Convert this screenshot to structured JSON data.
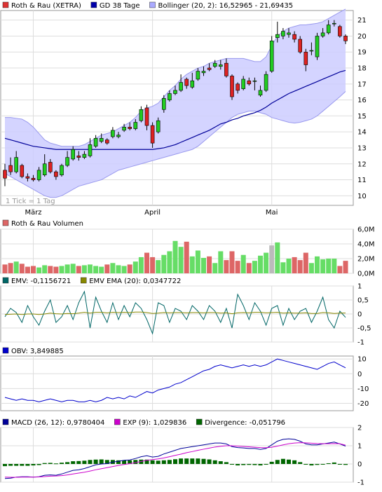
{
  "chart_data": [
    {
      "type": "candlestick",
      "legend": [
        {
          "label": "Roth & Rau (XETRA)",
          "color": "#dd3333"
        },
        {
          "label": "GD 38 Tage",
          "color": "#0000aa"
        },
        {
          "label": "Bollinger (20, 2): 16,52965 - 21,69435",
          "color": "#aaaaff"
        }
      ],
      "note": "1 Tick = 1 Tag",
      "ylim": [
        9.4,
        21.6
      ],
      "y_ticks": [
        "10",
        "11",
        "12",
        "13",
        "14",
        "15",
        "16",
        "17",
        "18",
        "19",
        "20",
        "21"
      ],
      "x_labels": [
        {
          "label": "März",
          "index": 5
        },
        {
          "label": "April",
          "index": 26
        },
        {
          "label": "Mai",
          "index": 47
        }
      ],
      "candles": {
        "open": [
          11.6,
          11.9,
          11.5,
          11.9,
          11.2,
          11.1,
          11.0,
          11.3,
          12.1,
          11.5,
          11.3,
          11.9,
          12.3,
          12.5,
          12.4,
          12.5,
          13.1,
          13.4,
          13.5,
          13.7,
          13.7,
          14.1,
          14.3,
          14.2,
          14.7,
          15.5,
          14.4,
          14.0,
          15.4,
          16.0,
          16.4,
          16.6,
          17.3,
          16.8,
          17.3,
          17.7,
          18.0,
          18.1,
          18.1,
          18.3,
          17.5,
          17.0,
          16.7,
          17.2,
          17.2,
          16.3,
          16.6,
          17.8,
          19.9,
          20.0,
          20.1,
          20.1,
          19.8,
          19.0,
          19.1,
          18.7,
          20.0,
          20.2,
          20.8,
          20.6,
          20.0
        ],
        "close": [
          11.1,
          11.5,
          12.4,
          11.2,
          11.1,
          11.0,
          11.6,
          12.0,
          11.5,
          11.2,
          11.9,
          12.4,
          12.9,
          12.4,
          12.6,
          13.2,
          13.6,
          13.6,
          13.3,
          14.1,
          13.8,
          14.3,
          14.2,
          14.6,
          15.4,
          14.4,
          13.3,
          14.7,
          16.1,
          16.4,
          16.6,
          17.1,
          16.9,
          17.2,
          17.8,
          17.8,
          17.9,
          18.3,
          18.2,
          17.5,
          16.2,
          16.6,
          17.3,
          17.0,
          17.2,
          16.6,
          17.6,
          19.7,
          20.1,
          20.3,
          20.2,
          19.8,
          19.0,
          18.2,
          19.1,
          20.0,
          20.2,
          20.7,
          20.8,
          20.0,
          19.7
        ],
        "high": [
          12.0,
          12.4,
          12.8,
          12.0,
          11.4,
          11.3,
          11.8,
          12.6,
          12.3,
          11.6,
          12.0,
          12.8,
          13.1,
          12.8,
          12.8,
          13.6,
          13.8,
          13.9,
          13.6,
          14.3,
          14.0,
          14.5,
          14.6,
          14.8,
          15.6,
          15.7,
          14.6,
          14.9,
          16.3,
          16.6,
          16.9,
          17.6,
          17.4,
          17.7,
          18.0,
          18.1,
          18.3,
          18.5,
          18.5,
          18.6,
          17.6,
          17.1,
          17.5,
          17.4,
          17.4,
          16.9,
          17.8,
          20.0,
          20.9,
          20.5,
          20.5,
          20.3,
          20.0,
          19.2,
          19.6,
          20.2,
          20.5,
          21.0,
          21.0,
          20.7,
          20.1
        ],
        "low": [
          10.6,
          11.3,
          11.4,
          11.1,
          10.9,
          10.9,
          10.9,
          11.2,
          11.4,
          11.0,
          11.2,
          11.8,
          12.2,
          12.2,
          12.3,
          12.4,
          13.0,
          13.3,
          13.2,
          13.6,
          13.6,
          14.0,
          14.1,
          14.1,
          14.6,
          14.1,
          13.0,
          13.9,
          15.2,
          15.9,
          16.3,
          16.5,
          16.7,
          16.7,
          17.2,
          17.5,
          17.8,
          18.0,
          17.9,
          17.4,
          16.0,
          16.4,
          16.6,
          16.9,
          16.6,
          16.2,
          16.5,
          17.7,
          19.6,
          19.8,
          19.9,
          19.6,
          18.9,
          17.8,
          18.8,
          18.5,
          19.9,
          20.1,
          20.6,
          19.9,
          19.5
        ]
      },
      "sma": [
        13.6,
        13.5,
        13.4,
        13.3,
        13.2,
        13.1,
        13.05,
        13.0,
        12.95,
        12.9,
        12.9,
        12.9,
        12.9,
        12.9,
        12.9,
        12.9,
        12.9,
        12.9,
        12.9,
        12.9,
        12.9,
        12.9,
        12.9,
        12.9,
        12.9,
        12.9,
        12.9,
        12.95,
        13.0,
        13.1,
        13.2,
        13.35,
        13.5,
        13.65,
        13.8,
        13.95,
        14.1,
        14.3,
        14.5,
        14.6,
        14.75,
        14.85,
        15.0,
        15.1,
        15.2,
        15.35,
        15.55,
        15.8,
        16.0,
        16.2,
        16.4,
        16.55,
        16.7,
        16.85,
        17.0,
        17.15,
        17.3,
        17.45,
        17.6,
        17.75,
        17.85
      ],
      "boll_upper": [
        14.9,
        14.9,
        14.85,
        14.8,
        14.6,
        14.3,
        13.9,
        13.5,
        13.3,
        13.2,
        13.1,
        13.1,
        13.1,
        13.1,
        13.2,
        13.4,
        13.6,
        13.8,
        13.9,
        14.0,
        14.2,
        14.4,
        14.6,
        14.9,
        15.3,
        15.5,
        15.6,
        15.8,
        16.2,
        16.6,
        16.9,
        17.3,
        17.6,
        17.8,
        18.0,
        18.1,
        18.3,
        18.4,
        18.5,
        18.6,
        18.6,
        18.6,
        18.6,
        18.5,
        18.4,
        18.4,
        18.7,
        19.4,
        20.0,
        20.3,
        20.5,
        20.6,
        20.7,
        20.7,
        20.75,
        20.8,
        20.9,
        21.1,
        21.3,
        21.5,
        21.69
      ],
      "boll_lower": [
        11.4,
        11.2,
        11.0,
        10.8,
        10.6,
        10.4,
        10.2,
        10.0,
        9.9,
        9.9,
        10.0,
        10.2,
        10.4,
        10.6,
        10.7,
        10.8,
        10.9,
        11.0,
        11.2,
        11.4,
        11.6,
        11.7,
        11.8,
        11.9,
        12.0,
        12.1,
        12.2,
        12.3,
        12.4,
        12.5,
        12.6,
        12.7,
        12.8,
        12.9,
        13.1,
        13.4,
        13.7,
        14.0,
        14.3,
        14.6,
        14.9,
        15.1,
        15.2,
        15.3,
        15.3,
        15.2,
        15.1,
        14.9,
        14.8,
        14.7,
        14.6,
        14.55,
        14.6,
        14.7,
        14.8,
        15.0,
        15.3,
        15.6,
        15.9,
        16.2,
        16.53
      ]
    },
    {
      "type": "bar",
      "legend": [
        {
          "label": "Roth & Rau Volumen",
          "color": "#dd6666"
        }
      ],
      "ylim": [
        0,
        6.0
      ],
      "y_ticks": [
        "0,0M",
        "2,0M",
        "4,0M",
        "6,0M"
      ],
      "colors": {
        "up": "#66dd66",
        "down": "#dd6666",
        "neutral": "#bbbbbb"
      },
      "values": [
        1.2,
        1.4,
        1.6,
        1.3,
        0.9,
        1.0,
        0.8,
        1.1,
        1.0,
        0.9,
        1.0,
        1.2,
        1.3,
        1.0,
        1.1,
        1.2,
        1.0,
        0.9,
        1.2,
        1.4,
        1.1,
        1.0,
        1.2,
        1.6,
        2.2,
        2.8,
        2.2,
        1.8,
        2.5,
        3.0,
        4.4,
        3.6,
        4.3,
        2.3,
        3.1,
        2.1,
        2.3,
        1.4,
        3.0,
        1.8,
        3.0,
        1.7,
        2.5,
        1.4,
        1.7,
        2.4,
        2.8,
        3.8,
        4.2,
        1.5,
        2.0,
        2.2,
        1.8,
        2.8,
        1.4,
        2.3,
        1.9,
        2.0,
        2.0,
        1.0,
        1.7
      ]
    },
    {
      "type": "line",
      "series": [
        {
          "name": "EMV: -0,1156721",
          "color": "#006666",
          "values": [
            -0.1,
            0.2,
            0.05,
            -0.3,
            0.3,
            -0.1,
            -0.4,
            0.1,
            0.5,
            -0.3,
            -0.1,
            0.3,
            -0.2,
            0.4,
            0.8,
            -0.5,
            0.6,
            0.1,
            -0.3,
            0.4,
            -0.2,
            0.3,
            -0.1,
            0.4,
            0.2,
            -0.2,
            -0.7,
            0.4,
            0.3,
            -0.3,
            0.2,
            0.1,
            -0.2,
            0.3,
            0.1,
            -0.2,
            0.3,
            0.1,
            -0.3,
            0.2,
            -0.5,
            0.7,
            0.3,
            -0.2,
            0.4,
            0.1,
            -0.4,
            0.2,
            0.3,
            -0.4,
            0.2,
            -0.2,
            0.1,
            0.2,
            -0.3,
            0.1,
            0.6,
            -0.2,
            -0.5,
            0.1,
            -0.12
          ]
        },
        {
          "name": "EMV EMA (20): 0,0347722",
          "color": "#888800",
          "values": [
            -0.02,
            -0.01,
            0.0,
            -0.02,
            0.0,
            0.0,
            -0.02,
            0.0,
            0.03,
            0.01,
            0.0,
            0.02,
            0.01,
            0.03,
            0.06,
            0.03,
            0.06,
            0.06,
            0.04,
            0.06,
            0.05,
            0.06,
            0.05,
            0.07,
            0.07,
            0.05,
            0.02,
            0.03,
            0.05,
            0.04,
            0.05,
            0.05,
            0.04,
            0.05,
            0.05,
            0.04,
            0.05,
            0.05,
            0.03,
            0.04,
            0.01,
            0.04,
            0.05,
            0.04,
            0.06,
            0.06,
            0.04,
            0.05,
            0.06,
            0.03,
            0.04,
            0.03,
            0.03,
            0.04,
            0.02,
            0.02,
            0.05,
            0.04,
            0.02,
            0.03,
            0.035
          ]
        }
      ],
      "ylim": [
        -1,
        1
      ],
      "y_ticks": [
        "-1",
        "-0,5",
        "0",
        "0,5",
        "1"
      ]
    },
    {
      "type": "line",
      "series": [
        {
          "name": "OBV: 3,849885",
          "color": "#0000cc",
          "values": [
            -16,
            -17,
            -18,
            -17,
            -18,
            -18,
            -19,
            -18,
            -17,
            -18,
            -19,
            -18,
            -18,
            -19,
            -19,
            -18,
            -19,
            -18,
            -16,
            -17,
            -16,
            -17,
            -15,
            -16,
            -14,
            -12,
            -13,
            -11,
            -10,
            -9,
            -7,
            -6,
            -4,
            -2,
            0,
            2,
            3,
            5,
            6,
            5,
            4,
            5,
            6,
            5,
            6,
            5,
            6,
            8,
            10,
            9,
            8,
            7,
            6,
            5,
            4,
            3,
            5,
            7,
            8,
            6,
            4
          ]
        }
      ],
      "ylim": [
        -25,
        12
      ],
      "y_ticks": [
        "-20",
        "-10",
        "0",
        "10"
      ]
    },
    {
      "type": "line",
      "series": [
        {
          "name": "MACD (26, 12): 0,9780404",
          "color": "#000099",
          "values": [
            -0.8,
            -0.78,
            -0.72,
            -0.7,
            -0.7,
            -0.72,
            -0.7,
            -0.62,
            -0.6,
            -0.62,
            -0.55,
            -0.45,
            -0.35,
            -0.32,
            -0.25,
            -0.15,
            -0.05,
            0.0,
            0.02,
            0.1,
            0.15,
            0.2,
            0.22,
            0.3,
            0.4,
            0.45,
            0.38,
            0.42,
            0.55,
            0.65,
            0.75,
            0.85,
            0.9,
            0.95,
            1.0,
            1.05,
            1.1,
            1.15,
            1.15,
            1.1,
            0.95,
            0.9,
            0.88,
            0.85,
            0.85,
            0.8,
            0.85,
            1.05,
            1.25,
            1.35,
            1.38,
            1.35,
            1.25,
            1.1,
            1.05,
            1.05,
            1.1,
            1.15,
            1.2,
            1.1,
            0.98
          ]
        },
        {
          "name": "EXP (9): 1,029836",
          "color": "#cc00cc",
          "values": [
            -0.72,
            -0.73,
            -0.73,
            -0.72,
            -0.72,
            -0.72,
            -0.71,
            -0.69,
            -0.67,
            -0.66,
            -0.64,
            -0.6,
            -0.55,
            -0.5,
            -0.45,
            -0.39,
            -0.32,
            -0.26,
            -0.2,
            -0.14,
            -0.08,
            -0.03,
            0.02,
            0.07,
            0.14,
            0.2,
            0.24,
            0.28,
            0.33,
            0.4,
            0.47,
            0.54,
            0.62,
            0.68,
            0.75,
            0.81,
            0.87,
            0.93,
            0.97,
            1.0,
            1.0,
            0.98,
            0.96,
            0.94,
            0.92,
            0.9,
            0.89,
            0.92,
            0.98,
            1.05,
            1.11,
            1.15,
            1.17,
            1.16,
            1.14,
            1.12,
            1.11,
            1.11,
            1.12,
            1.11,
            1.03
          ]
        },
        {
          "name": "Divergence: -0,051796",
          "color": "#006600",
          "values": [
            -0.12,
            -0.1,
            -0.1,
            -0.1,
            -0.1,
            -0.08,
            -0.06,
            0.05,
            0.06,
            0.03,
            0.07,
            0.1,
            0.15,
            0.16,
            0.18,
            0.22,
            0.24,
            0.25,
            0.22,
            0.22,
            0.2,
            0.2,
            0.2,
            0.22,
            0.24,
            0.24,
            0.2,
            0.18,
            0.2,
            0.22,
            0.26,
            0.3,
            0.3,
            0.3,
            0.3,
            0.28,
            0.25,
            0.2,
            0.15,
            0.1,
            -0.04,
            -0.08,
            -0.06,
            -0.05,
            -0.06,
            -0.08,
            -0.04,
            0.12,
            0.22,
            0.28,
            0.24,
            0.2,
            0.1,
            -0.04,
            -0.08,
            -0.05,
            0.0,
            0.04,
            0.08,
            0.0,
            -0.05
          ]
        }
      ],
      "ylim": [
        -1,
        2
      ],
      "y_ticks": [
        "-1",
        "0",
        "1",
        "2"
      ]
    }
  ]
}
